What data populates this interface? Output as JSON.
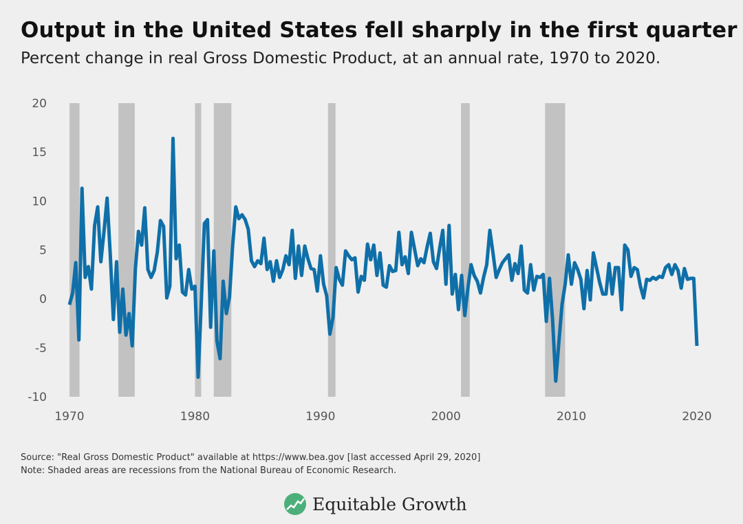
{
  "title": "Output in the United States fell sharply in the first quarter",
  "subtitle": "Percent change in real Gross Domestic Product, at an annual rate, 1970 to 2020.",
  "source": "Source: \"Real Gross Domestic Product\" available at https://www.bea.gov [last accessed April 29, 2020]",
  "note": "Note: Shaded areas are recessions from the National Bureau of Economic Research.",
  "logo": {
    "text": "Equitable Growth",
    "color": "#4caf7a"
  },
  "chart_data": {
    "type": "line",
    "x_start": 1970.0,
    "x_step": 0.25,
    "xlim": [
      1970,
      2020
    ],
    "ylim": [
      -10,
      20
    ],
    "x_ticks": [
      "1970",
      "1980",
      "1990",
      "2000",
      "2010",
      "2020"
    ],
    "y_ticks": [
      "20",
      "15",
      "10",
      "5",
      "0",
      "-5",
      "-10"
    ],
    "grid": false,
    "series_color": "#0f6fa8",
    "recession_color": "#c2c2c2",
    "recessions": [
      [
        1970.0,
        1970.8
      ],
      [
        1973.9,
        1975.2
      ],
      [
        1980.0,
        1980.5
      ],
      [
        1981.5,
        1982.9
      ],
      [
        1990.6,
        1991.2
      ],
      [
        2001.2,
        2001.9
      ],
      [
        2007.9,
        2009.5
      ]
    ],
    "values": [
      -0.6,
      0.6,
      3.7,
      -4.2,
      11.3,
      2.2,
      3.3,
      1.0,
      7.5,
      9.4,
      3.8,
      6.9,
      10.3,
      4.5,
      -2.1,
      3.8,
      -3.4,
      1.0,
      -3.7,
      -1.5,
      -4.8,
      3.1,
      6.9,
      5.5,
      9.3,
      3.0,
      2.2,
      2.9,
      4.8,
      8.0,
      7.4,
      0.1,
      1.3,
      16.4,
      4.1,
      5.5,
      0.7,
      0.4,
      3.0,
      1.0,
      1.3,
      -8.0,
      -0.5,
      7.7,
      8.1,
      -2.9,
      4.9,
      -4.3,
      -6.1,
      1.8,
      -1.5,
      0.2,
      5.4,
      9.4,
      8.2,
      8.6,
      8.1,
      7.1,
      3.9,
      3.3,
      3.9,
      3.6,
      6.2,
      3.0,
      3.8,
      1.8,
      3.9,
      2.2,
      3.0,
      4.4,
      3.5,
      7.0,
      2.1,
      5.4,
      2.4,
      5.4,
      4.1,
      3.1,
      3.0,
      0.8,
      4.4,
      1.5,
      0.3,
      -3.6,
      -1.9,
      3.2,
      2.0,
      1.4,
      4.9,
      4.4,
      4.0,
      4.2,
      0.7,
      2.3,
      1.9,
      5.6,
      4.0,
      5.5,
      2.4,
      4.7,
      1.4,
      1.2,
      3.4,
      2.8,
      2.9,
      6.8,
      3.5,
      4.3,
      2.6,
      6.8,
      5.1,
      3.4,
      4.1,
      3.7,
      5.3,
      6.7,
      3.8,
      3.1,
      5.2,
      7.0,
      1.5,
      7.5,
      0.5,
      2.5,
      -1.1,
      2.4,
      -1.7,
      1.1,
      3.5,
      2.4,
      1.8,
      0.6,
      2.2,
      3.5,
      7.0,
      4.7,
      2.2,
      3.0,
      3.7,
      4.1,
      4.5,
      1.9,
      3.6,
      2.6,
      5.4,
      0.9,
      0.6,
      3.5,
      0.9,
      2.3,
      2.2,
      2.5,
      -2.3,
      2.1,
      -2.1,
      -8.4,
      -4.4,
      -0.6,
      1.5,
      4.5,
      1.5,
      3.7,
      3.0,
      2.0,
      -1.0,
      2.9,
      -0.1,
      4.7,
      3.2,
      1.7,
      0.5,
      0.5,
      3.6,
      0.5,
      3.2,
      3.2,
      -1.1,
      5.5,
      5.0,
      2.3,
      3.2,
      3.0,
      1.3,
      0.1,
      2.0,
      1.9,
      2.2,
      2.0,
      2.3,
      2.2,
      3.2,
      3.5,
      2.5,
      3.5,
      2.9,
      1.1,
      3.1,
      2.0,
      2.1,
      2.1,
      -4.8
    ]
  }
}
